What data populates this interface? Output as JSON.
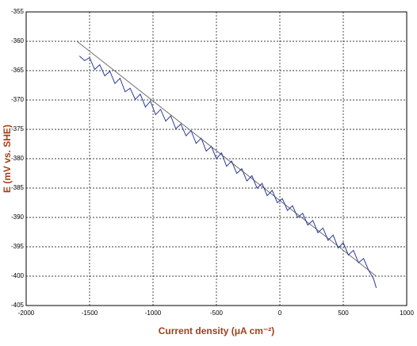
{
  "chart_data": {
    "type": "line",
    "xlabel": "Current density (μA cm⁻²)",
    "ylabel": "E (mV vs. SHE)",
    "xlim": [
      -2000,
      1000
    ],
    "xticks": [
      -2000,
      -1500,
      -1000,
      -500,
      0,
      500,
      1000
    ],
    "ylim": [
      -405,
      -355
    ],
    "yticks": [
      -405,
      -400,
      -395,
      -390,
      -385,
      -380,
      -375,
      -370,
      -365,
      -360,
      -355
    ],
    "grid": true,
    "series": [
      {
        "color": "#2b3a9c",
        "x": [
          -1580,
          -1540,
          -1500,
          -1460,
          -1420,
          -1380,
          -1340,
          -1300,
          -1260,
          -1220,
          -1180,
          -1140,
          -1100,
          -1060,
          -1020,
          -980,
          -940,
          -900,
          -860,
          -820,
          -780,
          -740,
          -700,
          -660,
          -620,
          -580,
          -540,
          -500,
          -460,
          -420,
          -380,
          -340,
          -300,
          -260,
          -220,
          -180,
          -140,
          -100,
          -60,
          -20,
          20,
          60,
          100,
          140,
          180,
          220,
          260,
          300,
          340,
          380,
          420,
          460,
          500,
          540,
          580,
          620,
          660,
          700,
          740,
          760
        ],
        "values": [
          -362.5,
          -363.3,
          -362.8,
          -364.8,
          -364.0,
          -365.9,
          -365.1,
          -367.2,
          -366.3,
          -368.6,
          -368.0,
          -369.9,
          -369.0,
          -371.2,
          -370.2,
          -372.5,
          -371.6,
          -373.6,
          -372.7,
          -374.9,
          -374.1,
          -376.1,
          -375.2,
          -377.4,
          -376.5,
          -378.7,
          -377.9,
          -380.0,
          -379.0,
          -381.3,
          -380.4,
          -382.5,
          -381.7,
          -383.8,
          -382.9,
          -385.0,
          -384.2,
          -386.3,
          -385.4,
          -387.5,
          -386.8,
          -388.8,
          -388.0,
          -390.0,
          -389.3,
          -391.3,
          -390.5,
          -392.6,
          -391.8,
          -393.9,
          -393.0,
          -395.2,
          -394.3,
          -396.4,
          -395.6,
          -397.7,
          -397.0,
          -399.0,
          -400.5,
          -402.0
        ]
      },
      {
        "color": "#6f6f6f",
        "x": [
          -1600,
          760
        ],
        "values": [
          -360,
          -400
        ]
      }
    ]
  }
}
